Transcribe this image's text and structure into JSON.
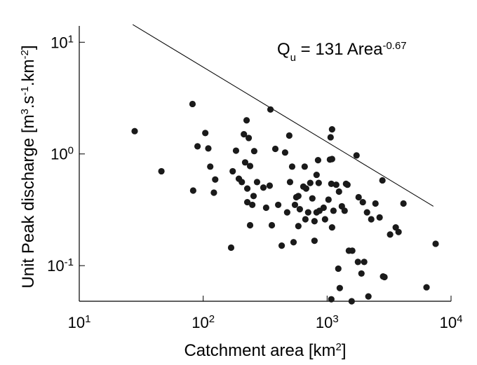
{
  "chart_data": {
    "type": "scatter",
    "xlabel": [
      {
        "text": "Catchment area [km"
      },
      {
        "text": "2",
        "shift": "super"
      },
      {
        "text": "]"
      }
    ],
    "ylabel": [
      {
        "text": "Unit Peak discharge [m"
      },
      {
        "text": "3",
        "shift": "super"
      },
      {
        "text": ".s"
      },
      {
        "text": "-1",
        "shift": "super"
      },
      {
        "text": ".km"
      },
      {
        "text": "-2",
        "shift": "super"
      },
      {
        "text": "]"
      }
    ],
    "annotation": [
      {
        "text": "Q"
      },
      {
        "text": "u",
        "shift": "sub"
      },
      {
        "text": " = 131 Area"
      },
      {
        "text": "-0.67",
        "shift": "super"
      }
    ],
    "xlog": true,
    "ylog": true,
    "color": "#1a1a1a",
    "xlim": [
      10,
      10000
    ],
    "ylim": [
      0.048,
      14
    ],
    "xticks": [
      {
        "value": 10,
        "label": "10",
        "exponent": "1"
      },
      {
        "value": 100,
        "label": "10",
        "exponent": "2"
      },
      {
        "value": 1000,
        "label": "10",
        "exponent": "3"
      },
      {
        "value": 10000,
        "label": "10",
        "exponent": "4"
      }
    ],
    "yticks": [
      {
        "value": 0.1,
        "label": "10",
        "exponent": "-1"
      },
      {
        "value": 1,
        "label": "10",
        "exponent": "0"
      },
      {
        "value": 10,
        "label": "10",
        "exponent": "1"
      }
    ],
    "x": [
      28,
      46,
      82,
      83,
      90,
      104,
      110,
      114,
      125,
      122,
      168,
      173,
      184,
      194,
      205,
      218,
      224,
      233,
      239,
      249,
      255,
      213,
      227,
      227,
      239,
      258,
      272,
      306,
      349,
      322,
      344,
      358,
      382,
      403,
      430,
      458,
      476,
      495,
      502,
      522,
      536,
      550,
      564,
      586,
      586,
      602,
      643,
      659,
      668,
      677,
      703,
      731,
      760,
      791,
      822,
      791,
      822,
      845,
      855,
      867,
      937,
      962,
      1026,
      1067,
      1054,
      1096,
      1096,
      1081,
      1125,
      1184,
      1247,
      1315,
      1384,
      1421,
      1459,
      1498,
      1596,
      1727,
      1773,
      1795,
      1941,
      1992,
      1892,
      2099,
      2270,
      2455,
      2652,
      2794,
      2829,
      2904,
      3223,
      3578,
      3770,
      4130,
      6340,
      7510,
      1081,
      1578,
      2153,
      1231,
      1265,
      1096
    ],
    "values": [
      1.6,
      0.7,
      2.8,
      0.47,
      1.17,
      1.54,
      1.12,
      0.77,
      0.59,
      0.45,
      0.145,
      0.7,
      1.07,
      0.6,
      0.56,
      0.84,
      2.0,
      1.39,
      0.78,
      0.35,
      0.42,
      1.5,
      0.49,
      0.37,
      0.23,
      1.06,
      0.56,
      0.5,
      2.5,
      0.33,
      0.52,
      0.23,
      1.11,
      0.35,
      0.151,
      1.03,
      0.3,
      1.46,
      0.56,
      0.77,
      0.162,
      0.35,
      0.41,
      0.42,
      0.226,
      0.32,
      0.51,
      0.77,
      0.26,
      0.49,
      0.3,
      0.55,
      0.4,
      0.25,
      0.3,
      0.167,
      0.65,
      0.88,
      0.55,
      0.31,
      0.33,
      0.26,
      0.39,
      1.41,
      0.89,
      0.9,
      0.22,
      0.54,
      0.31,
      0.53,
      0.46,
      0.34,
      0.31,
      0.54,
      0.53,
      0.136,
      0.136,
      0.97,
      0.108,
      0.41,
      0.37,
      0.108,
      0.085,
      0.3,
      0.26,
      0.36,
      0.27,
      0.58,
      0.08,
      0.079,
      0.19,
      0.22,
      0.2,
      0.36,
      0.064,
      0.157,
      0.05,
      0.048,
      0.053,
      0.094,
      0.063,
      1.66
    ],
    "fit_line": {
      "x": [
        27,
        7200
      ],
      "values": [
        14.4,
        0.34
      ],
      "color": "#000000"
    }
  }
}
